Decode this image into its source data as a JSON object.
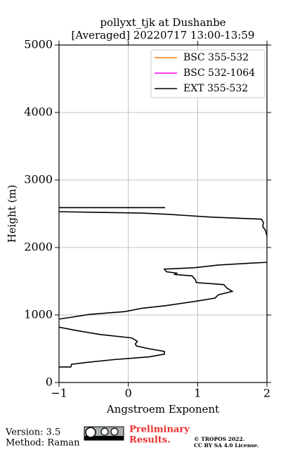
{
  "chart_data": {
    "type": "line",
    "title": "pollyxt_tjk at Dushanbe",
    "subtitle": "[Averaged] 20220717 13:00-13:59",
    "x_label": "Angstroem Exponent",
    "y_label": "Height (m)",
    "y": [
      230,
      230,
      270,
      300,
      340,
      380,
      420,
      460,
      500,
      540,
      570,
      610,
      660,
      710,
      770,
      820,
      null,
      940,
      970,
      1010,
      1050,
      1100,
      1140,
      1200,
      1250,
      1300,
      1350,
      1400,
      1450,
      1480,
      1520,
      1580,
      1600,
      1620,
      1640,
      1680,
      1700,
      1740,
      1770,
      1780,
      null,
      2170,
      2250,
      2310,
      2370,
      2420,
      2450,
      2490,
      2510,
      2530,
      null,
      2590,
      2590
    ],
    "series": [
      {
        "name": "BSC 355-532",
        "color": "#ff7f0e",
        "values": [
          null,
          null,
          null,
          null,
          null,
          null,
          null,
          null,
          null,
          null,
          null,
          null,
          null,
          null,
          null,
          null,
          null,
          null,
          null,
          null,
          null,
          null,
          null,
          null,
          null,
          null,
          null,
          null,
          null,
          null,
          null,
          null,
          null,
          null,
          null,
          null,
          null,
          null,
          null,
          null,
          null,
          null,
          null,
          null,
          null,
          null,
          null,
          null,
          null,
          null,
          null,
          null,
          null
        ]
      },
      {
        "name": "BSC 532-1064",
        "color": "#ff00ff",
        "values": [
          null,
          null,
          null,
          null,
          null,
          null,
          null,
          null,
          null,
          null,
          null,
          null,
          null,
          null,
          null,
          null,
          null,
          null,
          null,
          null,
          null,
          null,
          null,
          null,
          null,
          null,
          null,
          null,
          null,
          null,
          null,
          null,
          null,
          null,
          null,
          null,
          null,
          null,
          null,
          null,
          null,
          null,
          null,
          null,
          null,
          null,
          null,
          null,
          null,
          null,
          null,
          null,
          null
        ]
      },
      {
        "name": "EXT 355-532",
        "color": "#000000",
        "values": [
          -1.0,
          -0.83,
          -0.82,
          -0.58,
          -0.2,
          0.3,
          0.52,
          0.52,
          0.3,
          0.12,
          0.1,
          0.13,
          0.05,
          -0.4,
          -0.75,
          -1.0,
          null,
          -1.0,
          -0.8,
          -0.55,
          -0.05,
          0.2,
          0.55,
          0.95,
          1.25,
          1.3,
          1.5,
          1.42,
          1.38,
          0.98,
          0.97,
          0.92,
          0.67,
          0.7,
          0.55,
          0.52,
          0.95,
          1.3,
          1.8,
          2.0,
          null,
          2.0,
          1.98,
          1.94,
          1.95,
          1.92,
          1.2,
          0.6,
          0.2,
          -1.0,
          null,
          -1.0,
          0.53
        ]
      }
    ],
    "xlim": [
      -1,
      2
    ],
    "ylim": [
      0,
      5000
    ],
    "xticks": [
      {
        "value": -1,
        "label": "−1"
      },
      0,
      1,
      2
    ],
    "yticks": [
      0,
      1000,
      2000,
      3000,
      4000,
      5000
    ],
    "grid": true,
    "legend": "upper right"
  },
  "footer": {
    "version": "Version: 3.5",
    "method": "Method: Raman",
    "notice": [
      "Preliminary",
      "Results."
    ],
    "copyright": [
      "© TROPOS 2022.",
      "CC BY SA 4.0 License."
    ]
  }
}
